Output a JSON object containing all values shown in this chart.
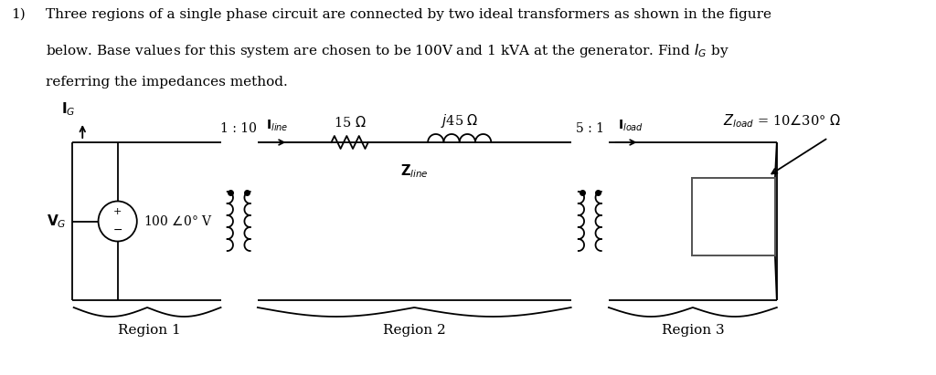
{
  "bg_color": "#ffffff",
  "problem_number": "1)",
  "header_line1": "Three regions of a single phase circuit are connected by two ideal transformers as shown in the figure",
  "header_line2": "below. Base values for this system are chosen to be 100V and 1 kVA at the generator. Find $I_G$ by",
  "header_line3": "referring the impedances method.",
  "region1_label": "Region 1",
  "region2_label": "Region 2",
  "region3_label": "Region 3",
  "transformer1_ratio": "1 : 10",
  "transformer2_ratio": "5 : 1",
  "resistance_label": "15 $\\Omega$",
  "inductance_label": "$j$45 $\\Omega$",
  "zline_label": "$\\mathbf{Z}_{line}$",
  "zload_label": "$Z_{load}$ = 10$\\angle$30° $\\Omega$",
  "iline_label": "$\\mathbf{I}_{line}$",
  "iload_label": "$\\mathbf{I}_{load}$",
  "ig_label": "$\\mathbf{I}_G$",
  "vg_label": "$\\mathbf{V}_G$",
  "vg_value": "100 $\\angle$0° V"
}
